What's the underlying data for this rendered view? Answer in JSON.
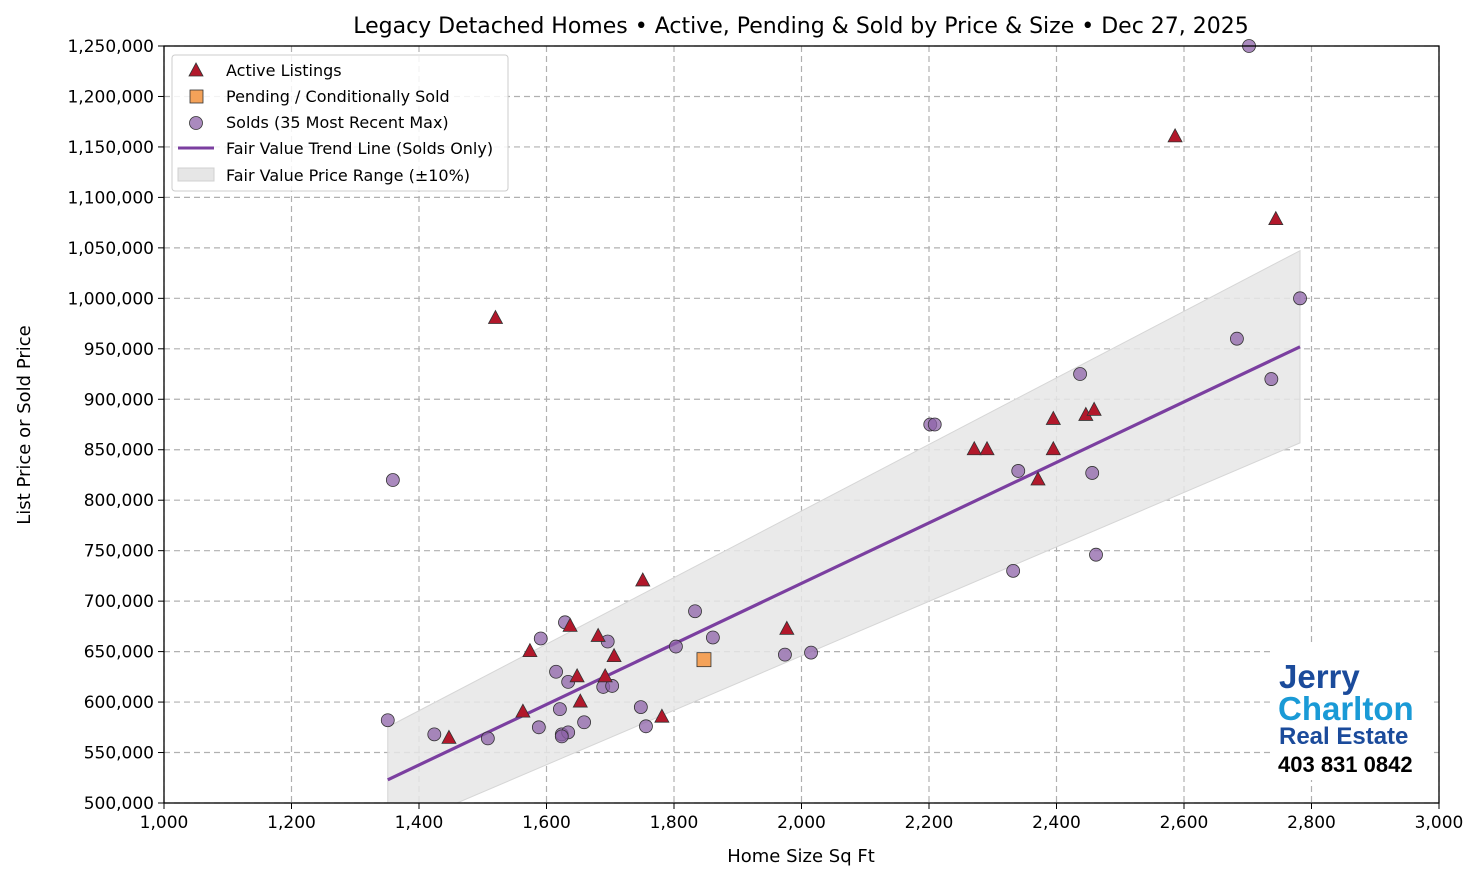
{
  "chart_data": {
    "type": "scatter",
    "title": "Legacy Detached Homes • Active, Pending & Sold by Price & Size • Dec 27, 2025",
    "xlabel": "Home Size Sq Ft",
    "ylabel": "List Price or Sold Price",
    "xlim": [
      1000,
      3000
    ],
    "ylim": [
      500000,
      1250000
    ],
    "x_ticks": [
      1000,
      1200,
      1400,
      1600,
      1800,
      2000,
      2200,
      2400,
      2600,
      2800,
      3000
    ],
    "x_tick_labels": [
      "1,000",
      "1,200",
      "1,400",
      "1,600",
      "1,800",
      "2,000",
      "2,200",
      "2,400",
      "2,600",
      "2,800",
      "3,000"
    ],
    "y_ticks": [
      500000,
      550000,
      600000,
      650000,
      700000,
      750000,
      800000,
      850000,
      900000,
      950000,
      1000000,
      1050000,
      1100000,
      1150000,
      1200000,
      1250000
    ],
    "y_tick_labels": [
      "500,000",
      "550,000",
      "600,000",
      "650,000",
      "700,000",
      "750,000",
      "800,000",
      "850,000",
      "900,000",
      "950,000",
      "1,000,000",
      "1,050,000",
      "1,100,000",
      "1,150,000",
      "1,200,000",
      "1,250,000"
    ],
    "grid": true,
    "legend_placement": "top-left",
    "series": [
      {
        "name": "Active Listings",
        "marker": "triangle",
        "color": "#b2182b",
        "points": [
          [
            1520,
            980000
          ],
          [
            2586,
            1160000
          ],
          [
            2744,
            1078000
          ],
          [
            1751,
            720000
          ],
          [
            1574,
            650000
          ],
          [
            1637,
            675000
          ],
          [
            1681,
            665000
          ],
          [
            1706,
            645000
          ],
          [
            1648,
            625000
          ],
          [
            1692,
            625000
          ],
          [
            1653,
            600000
          ],
          [
            1563,
            590000
          ],
          [
            1447,
            564000
          ],
          [
            1781,
            585000
          ],
          [
            1977,
            672000
          ],
          [
            2271,
            850000
          ],
          [
            2291,
            850000
          ],
          [
            2395,
            850000
          ],
          [
            2395,
            880000
          ],
          [
            2371,
            820000
          ],
          [
            2446,
            884000
          ],
          [
            2459,
            889000
          ]
        ]
      },
      {
        "name": "Pending / Conditionally Sold",
        "marker": "square",
        "color": "#f4a259",
        "points": [
          [
            1847,
            642000
          ]
        ]
      },
      {
        "name": "Solds (35 Most Recent Max)",
        "marker": "circle",
        "color": "#8e63a8",
        "points": [
          [
            2702,
            1250000
          ],
          [
            2782,
            1000000
          ],
          [
            2683,
            960000
          ],
          [
            2737,
            920000
          ],
          [
            2437,
            925000
          ],
          [
            2202,
            875000
          ],
          [
            2209,
            875000
          ],
          [
            1359,
            820000
          ],
          [
            2340,
            829000
          ],
          [
            2456,
            827000
          ],
          [
            2462,
            746000
          ],
          [
            2332,
            730000
          ],
          [
            1629,
            679000
          ],
          [
            1591,
            663000
          ],
          [
            1696,
            660000
          ],
          [
            1833,
            690000
          ],
          [
            1861,
            664000
          ],
          [
            1803,
            655000
          ],
          [
            1974,
            647000
          ],
          [
            2015,
            649000
          ],
          [
            1615,
            630000
          ],
          [
            1634,
            620000
          ],
          [
            1689,
            615000
          ],
          [
            1703,
            616000
          ],
          [
            1621,
            593000
          ],
          [
            1748,
            595000
          ],
          [
            1659,
            580000
          ],
          [
            1588,
            575000
          ],
          [
            1756,
            576000
          ],
          [
            1351,
            582000
          ],
          [
            1424,
            568000
          ],
          [
            1508,
            564000
          ],
          [
            1624,
            568000
          ],
          [
            1634,
            570000
          ],
          [
            1624,
            566000
          ]
        ]
      }
    ],
    "trend_line": {
      "name": "Fair Value Trend Line (Solds Only)",
      "color": "#7b3fa0",
      "points": [
        [
          1351,
          523000
        ],
        [
          2782,
          952000
        ]
      ]
    },
    "range_band": {
      "name": "Fair Value Price Range (±10%)",
      "color": "#e6e6e6",
      "pct": 10
    }
  },
  "logo": {
    "line1": "Jerry",
    "line2": "Charlton",
    "line3": "Real Estate",
    "phone": "403 831 0842",
    "colors": {
      "dark": "#1b4b9b",
      "light": "#1a9ad6"
    }
  }
}
